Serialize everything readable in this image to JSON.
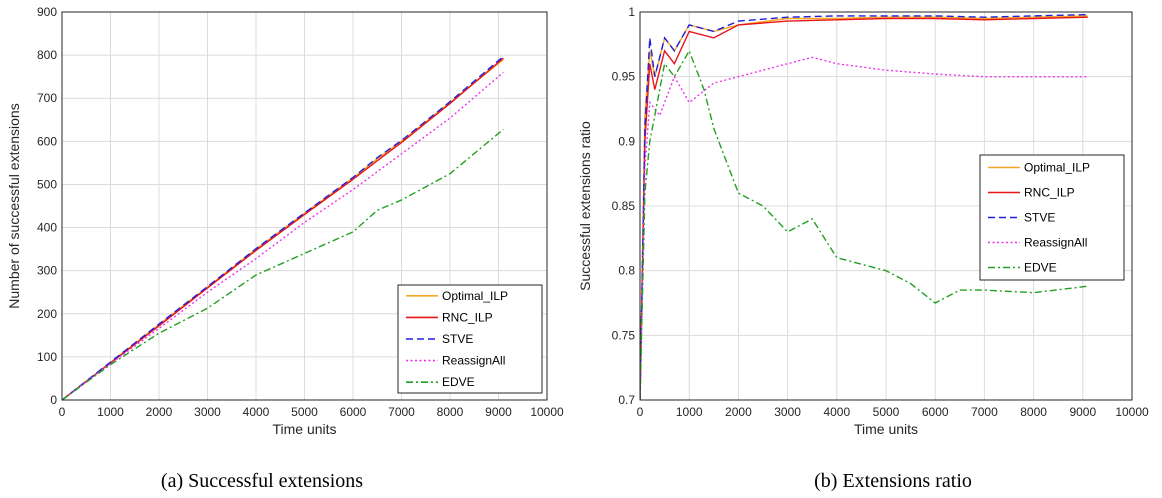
{
  "chart_data": [
    {
      "type": "line",
      "caption": "(a) Successful extensions",
      "xlabel": "Time units",
      "ylabel": "Number of successful extensions",
      "xlim": [
        0,
        10000
      ],
      "ylim": [
        0,
        900
      ],
      "xticks": [
        "0",
        "1000",
        "2000",
        "3000",
        "4000",
        "5000",
        "6000",
        "7000",
        "8000",
        "9000",
        "10000"
      ],
      "yticks": [
        "0",
        "100",
        "200",
        "300",
        "400",
        "500",
        "600",
        "700",
        "800",
        "900"
      ],
      "grid": true,
      "legend": "bottom-right",
      "series": [
        {
          "name": "Optimal_ILP",
          "color": "#f5a623",
          "dash": "solid",
          "x": [
            0,
            1000,
            2000,
            3000,
            4000,
            5000,
            6000,
            6500,
            7000,
            8000,
            9100
          ],
          "y": [
            0,
            87,
            175,
            262,
            350,
            433,
            515,
            560,
            600,
            690,
            790
          ]
        },
        {
          "name": "RNC_ILP",
          "color": "#e8161b",
          "dash": "solid",
          "x": [
            0,
            1000,
            2000,
            3000,
            4000,
            5000,
            6000,
            6500,
            7000,
            8000,
            9100
          ],
          "y": [
            0,
            86,
            172,
            260,
            347,
            430,
            512,
            555,
            597,
            688,
            793
          ]
        },
        {
          "name": "STVE",
          "color": "#1f1fe0",
          "dash": "dashed",
          "x": [
            0,
            1000,
            2000,
            3000,
            4000,
            5000,
            6000,
            6500,
            7000,
            8000,
            9100
          ],
          "y": [
            0,
            88,
            176,
            263,
            351,
            434,
            516,
            562,
            602,
            692,
            797
          ]
        },
        {
          "name": "ReassignAll",
          "color": "#ee33ee",
          "dash": "dotted",
          "x": [
            0,
            1000,
            2000,
            3000,
            4000,
            5000,
            6000,
            7000,
            8000,
            9100
          ],
          "y": [
            0,
            84,
            166,
            250,
            328,
            412,
            488,
            571,
            654,
            760
          ]
        },
        {
          "name": "EDVE",
          "color": "#22a022",
          "dash": "dashdot",
          "x": [
            0,
            1000,
            2000,
            3000,
            4000,
            5000,
            6000,
            6500,
            7000,
            8000,
            9100
          ],
          "y": [
            0,
            82,
            155,
            213,
            290,
            340,
            390,
            440,
            464,
            525,
            628
          ]
        }
      ]
    },
    {
      "type": "line",
      "caption": "(b) Extensions ratio",
      "xlabel": "Time units",
      "ylabel": "Successful extensions ratio",
      "xlim": [
        0,
        10000
      ],
      "ylim": [
        0.7,
        1
      ],
      "xticks": [
        "0",
        "1000",
        "2000",
        "3000",
        "4000",
        "5000",
        "6000",
        "7000",
        "8000",
        "9000",
        "10000"
      ],
      "yticks": [
        "0.7",
        "0.75",
        "0.8",
        "0.85",
        "0.9",
        "0.95",
        "1"
      ],
      "grid": true,
      "legend": "right",
      "series": [
        {
          "name": "Optimal_ILP",
          "color": "#f5a623",
          "dash": "solid",
          "x": [
            0,
            100,
            200,
            300,
            500,
            700,
            1000,
            1500,
            2000,
            3000,
            4000,
            5000,
            6000,
            7000,
            8000,
            9100
          ],
          "y": [
            0.7,
            0.92,
            0.97,
            0.95,
            0.98,
            0.97,
            0.99,
            0.985,
            0.99,
            0.995,
            0.995,
            0.996,
            0.996,
            0.995,
            0.996,
            0.997
          ]
        },
        {
          "name": "RNC_ILP",
          "color": "#e8161b",
          "dash": "solid",
          "x": [
            0,
            100,
            200,
            300,
            500,
            700,
            1000,
            1500,
            2000,
            3000,
            4000,
            5000,
            6000,
            7000,
            8000,
            9100
          ],
          "y": [
            0.7,
            0.9,
            0.96,
            0.94,
            0.97,
            0.96,
            0.985,
            0.98,
            0.99,
            0.993,
            0.994,
            0.995,
            0.995,
            0.994,
            0.995,
            0.996
          ]
        },
        {
          "name": "STVE",
          "color": "#1f1fe0",
          "dash": "dashed",
          "x": [
            0,
            100,
            200,
            300,
            500,
            700,
            1000,
            1500,
            2000,
            3000,
            4000,
            5000,
            6000,
            7000,
            8000,
            9100
          ],
          "y": [
            0.7,
            0.91,
            0.98,
            0.95,
            0.98,
            0.97,
            0.99,
            0.985,
            0.993,
            0.996,
            0.997,
            0.997,
            0.997,
            0.996,
            0.997,
            0.998
          ]
        },
        {
          "name": "ReassignAll",
          "color": "#ee33ee",
          "dash": "dotted",
          "x": [
            0,
            100,
            200,
            400,
            700,
            1000,
            1500,
            2000,
            2500,
            3000,
            3500,
            4000,
            5000,
            6000,
            7000,
            8000,
            9100
          ],
          "y": [
            0.7,
            0.88,
            0.93,
            0.92,
            0.95,
            0.93,
            0.945,
            0.95,
            0.955,
            0.96,
            0.965,
            0.96,
            0.955,
            0.952,
            0.95,
            0.95,
            0.95
          ]
        },
        {
          "name": "EDVE",
          "color": "#22a022",
          "dash": "dashdot",
          "x": [
            0,
            100,
            200,
            300,
            500,
            700,
            1000,
            1300,
            1500,
            2000,
            2500,
            3000,
            3500,
            4000,
            4500,
            5000,
            5500,
            6000,
            6500,
            7000,
            8000,
            9100
          ],
          "y": [
            0.7,
            0.86,
            0.9,
            0.92,
            0.96,
            0.95,
            0.97,
            0.94,
            0.91,
            0.86,
            0.85,
            0.83,
            0.84,
            0.81,
            0.805,
            0.8,
            0.79,
            0.775,
            0.785,
            0.785,
            0.783,
            0.788
          ]
        }
      ]
    }
  ]
}
